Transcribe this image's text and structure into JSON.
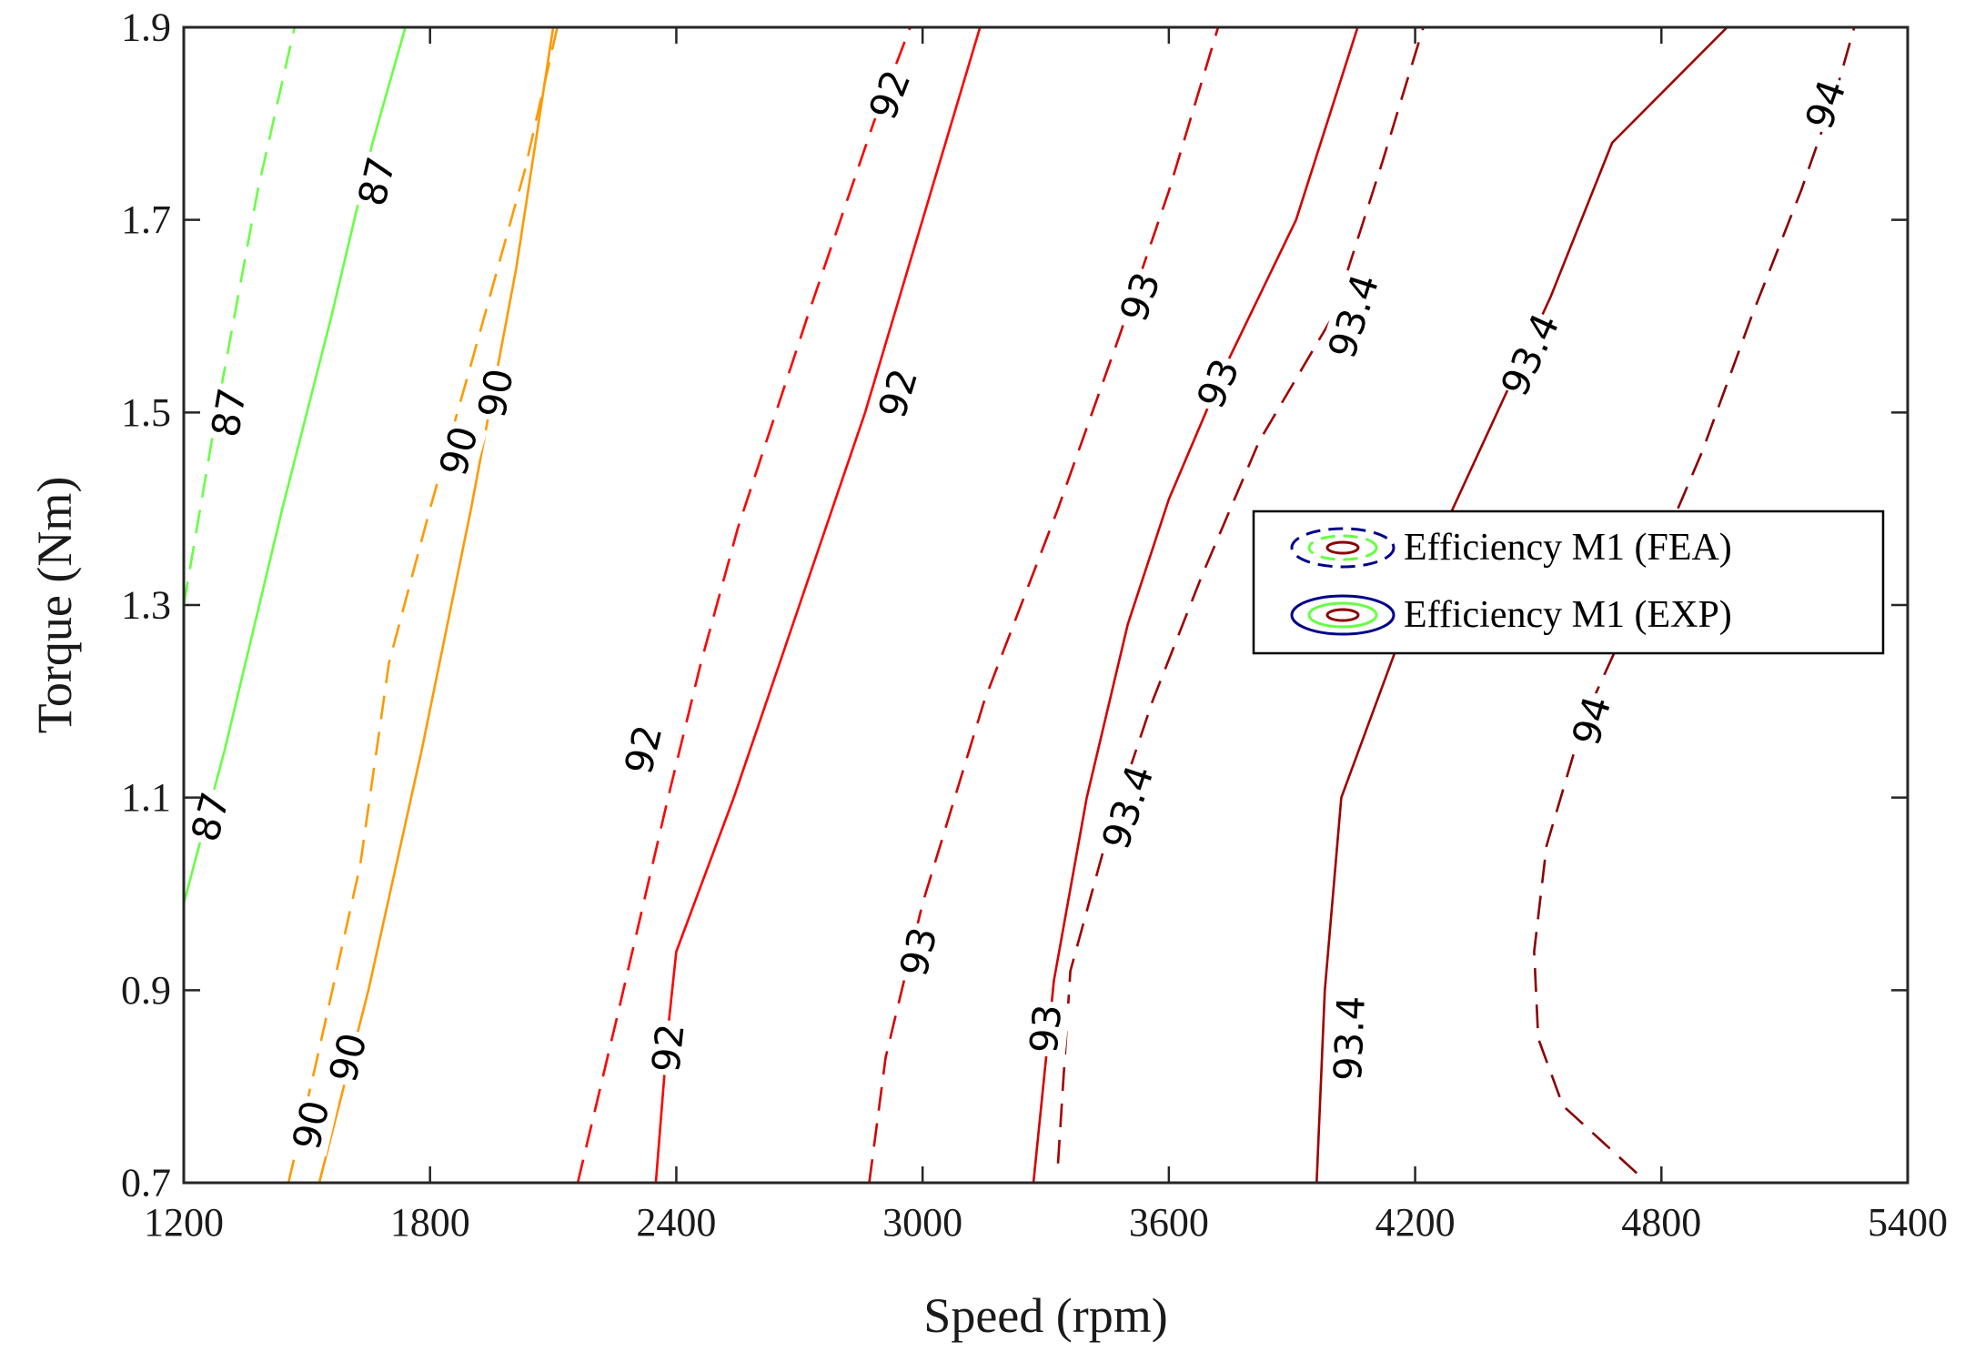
{
  "chart_data": {
    "type": "contour",
    "xlabel": "Speed (rpm)",
    "ylabel": "Torque (Nm)",
    "xlim": [
      1200,
      5400
    ],
    "ylim": [
      0.7,
      1.9
    ],
    "xticks": [
      1200,
      1800,
      2400,
      3000,
      3600,
      4200,
      4800,
      5400
    ],
    "xtick_labels": [
      "1200",
      "1800",
      "2400",
      "3000",
      "3600",
      "4200",
      "4800",
      "5400"
    ],
    "yticks": [
      0.7,
      0.9,
      1.1,
      1.3,
      1.5,
      1.7,
      1.9
    ],
    "ytick_labels": [
      "0.7",
      "0.9",
      "1.1",
      "1.3",
      "1.5",
      "1.7",
      "1.9"
    ],
    "grid": false,
    "legend": {
      "position": "center-right",
      "entries": [
        {
          "label": "Efficiency M1 (FEA)",
          "style": "dashed"
        },
        {
          "label": "Efficiency M1 (EXP)",
          "style": "solid"
        }
      ]
    },
    "level_colors": {
      "87": "#66ff44",
      "90": "#ff9900",
      "92": "#ff0000",
      "93": "#d40000",
      "93.4": "#a00000",
      "94": "#8b0000"
    },
    "legend_colors": [
      "#00008b",
      "#66ff44",
      "#8b0000"
    ],
    "series": [
      {
        "name": "Efficiency M1 (FEA)",
        "level": "87",
        "style": "dashed",
        "points": [
          [
            1200,
            1.3
          ],
          [
            1280,
            1.5
          ],
          [
            1380,
            1.73
          ],
          [
            1470,
            1.9
          ]
        ],
        "labels": [
          {
            "text": "87",
            "at": [
              1310,
              1.5
            ]
          }
        ]
      },
      {
        "name": "Efficiency M1 (EXP)",
        "level": "87",
        "style": "solid",
        "points": [
          [
            1200,
            0.99
          ],
          [
            1300,
            1.15
          ],
          [
            1440,
            1.4
          ],
          [
            1560,
            1.6
          ],
          [
            1660,
            1.78
          ],
          [
            1740,
            1.9
          ]
        ],
        "labels": [
          {
            "text": "87",
            "at": [
              1265,
              1.08
            ]
          },
          {
            "text": "87",
            "at": [
              1670,
              1.74
            ]
          }
        ]
      },
      {
        "name": "Efficiency M1 (FEA)",
        "level": "90",
        "style": "dashed",
        "points": [
          [
            1455,
            0.7
          ],
          [
            1520,
            0.82
          ],
          [
            1630,
            1.03
          ],
          [
            1700,
            1.24
          ],
          [
            1800,
            1.4
          ],
          [
            1900,
            1.55
          ],
          [
            2030,
            1.75
          ],
          [
            2110,
            1.9
          ]
        ],
        "labels": [
          {
            "text": "90",
            "at": [
              1510,
              0.76
            ]
          },
          {
            "text": "90",
            "at": [
              1870,
              1.46
            ]
          }
        ]
      },
      {
        "name": "Efficiency M1 (EXP)",
        "level": "90",
        "style": "solid",
        "points": [
          [
            1530,
            0.7
          ],
          [
            1650,
            0.9
          ],
          [
            1780,
            1.15
          ],
          [
            1900,
            1.4
          ],
          [
            2010,
            1.65
          ],
          [
            2100,
            1.9
          ]
        ],
        "labels": [
          {
            "text": "90",
            "at": [
              1600,
              0.83
            ]
          },
          {
            "text": "90",
            "at": [
              1960,
              1.52
            ]
          }
        ]
      },
      {
        "name": "Efficiency M1 (FEA)",
        "level": "92",
        "style": "dashed",
        "points": [
          [
            2160,
            0.7
          ],
          [
            2260,
            0.88
          ],
          [
            2380,
            1.1
          ],
          [
            2460,
            1.24
          ],
          [
            2550,
            1.38
          ],
          [
            2720,
            1.6
          ],
          [
            2880,
            1.8
          ],
          [
            2970,
            1.9
          ]
        ],
        "labels": [
          {
            "text": "92",
            "at": [
              2320,
              1.15
            ]
          },
          {
            "text": "92",
            "at": [
              2920,
              1.83
            ]
          }
        ]
      },
      {
        "name": "Efficiency M1 (EXP)",
        "level": "92",
        "style": "solid",
        "points": [
          [
            2350,
            0.7
          ],
          [
            2380,
            0.86
          ],
          [
            2400,
            0.94
          ],
          [
            2540,
            1.1
          ],
          [
            2700,
            1.3
          ],
          [
            2860,
            1.5
          ],
          [
            3000,
            1.7
          ],
          [
            3140,
            1.9
          ]
        ],
        "labels": [
          {
            "text": "92",
            "at": [
              2380,
              0.84
            ]
          },
          {
            "text": "92",
            "at": [
              2940,
              1.52
            ]
          }
        ]
      },
      {
        "name": "Efficiency M1 (FEA)",
        "level": "93",
        "style": "dashed",
        "points": [
          [
            2870,
            0.7
          ],
          [
            2910,
            0.83
          ],
          [
            3000,
            0.99
          ],
          [
            3150,
            1.2
          ],
          [
            3330,
            1.4
          ],
          [
            3480,
            1.58
          ],
          [
            3600,
            1.73
          ],
          [
            3720,
            1.9
          ]
        ],
        "labels": [
          {
            "text": "93",
            "at": [
              2990,
              0.94
            ]
          },
          {
            "text": "93",
            "at": [
              3530,
              1.62
            ]
          }
        ]
      },
      {
        "name": "Efficiency M1 (EXP)",
        "level": "93",
        "style": "solid",
        "points": [
          [
            3270,
            0.7
          ],
          [
            3320,
            0.91
          ],
          [
            3400,
            1.1
          ],
          [
            3500,
            1.28
          ],
          [
            3600,
            1.41
          ],
          [
            3740,
            1.55
          ],
          [
            3910,
            1.7
          ],
          [
            4060,
            1.9
          ]
        ],
        "labels": [
          {
            "text": "93",
            "at": [
              3300,
              0.86
            ]
          },
          {
            "text": "93",
            "at": [
              3720,
              1.53
            ]
          }
        ]
      },
      {
        "name": "Efficiency M1 (FEA)",
        "level": "93.4",
        "style": "dashed",
        "points": [
          [
            3330,
            0.72
          ],
          [
            3360,
            0.92
          ],
          [
            3450,
            1.06
          ],
          [
            3560,
            1.2
          ],
          [
            3680,
            1.33
          ],
          [
            3820,
            1.47
          ],
          [
            4000,
            1.6
          ],
          [
            4120,
            1.76
          ],
          [
            4220,
            1.9
          ]
        ],
        "labels": [
          {
            "text": "93.4",
            "at": [
              3500,
              1.09
            ]
          },
          {
            "text": "93.4",
            "at": [
              4050,
              1.6
            ]
          }
        ]
      },
      {
        "name": "Efficiency M1 (EXP)",
        "level": "93.4",
        "style": "solid",
        "points": [
          [
            3960,
            0.7
          ],
          [
            3980,
            0.9
          ],
          [
            4020,
            1.1
          ],
          [
            4150,
            1.25
          ],
          [
            4270,
            1.38
          ],
          [
            4400,
            1.5
          ],
          [
            4530,
            1.62
          ],
          [
            4680,
            1.78
          ],
          [
            4960,
            1.9
          ]
        ],
        "labels": [
          {
            "text": "93.4",
            "at": [
              4040,
              0.85
            ]
          },
          {
            "text": "93.4",
            "at": [
              4480,
              1.56
            ]
          }
        ]
      },
      {
        "name": "Efficiency M1 (FEA)",
        "level": "94",
        "style": "dashed",
        "points": [
          [
            4740,
            0.71
          ],
          [
            4560,
            0.78
          ],
          [
            4500,
            0.85
          ],
          [
            4490,
            0.94
          ],
          [
            4520,
            1.05
          ],
          [
            4610,
            1.18
          ],
          [
            4770,
            1.33
          ],
          [
            4900,
            1.46
          ],
          [
            5020,
            1.6
          ],
          [
            5140,
            1.73
          ],
          [
            5230,
            1.84
          ],
          [
            5270,
            1.9
          ]
        ],
        "labels": [
          {
            "text": "94",
            "at": [
              4630,
              1.18
            ]
          },
          {
            "text": "94",
            "at": [
              5200,
              1.82
            ]
          }
        ]
      }
    ]
  }
}
